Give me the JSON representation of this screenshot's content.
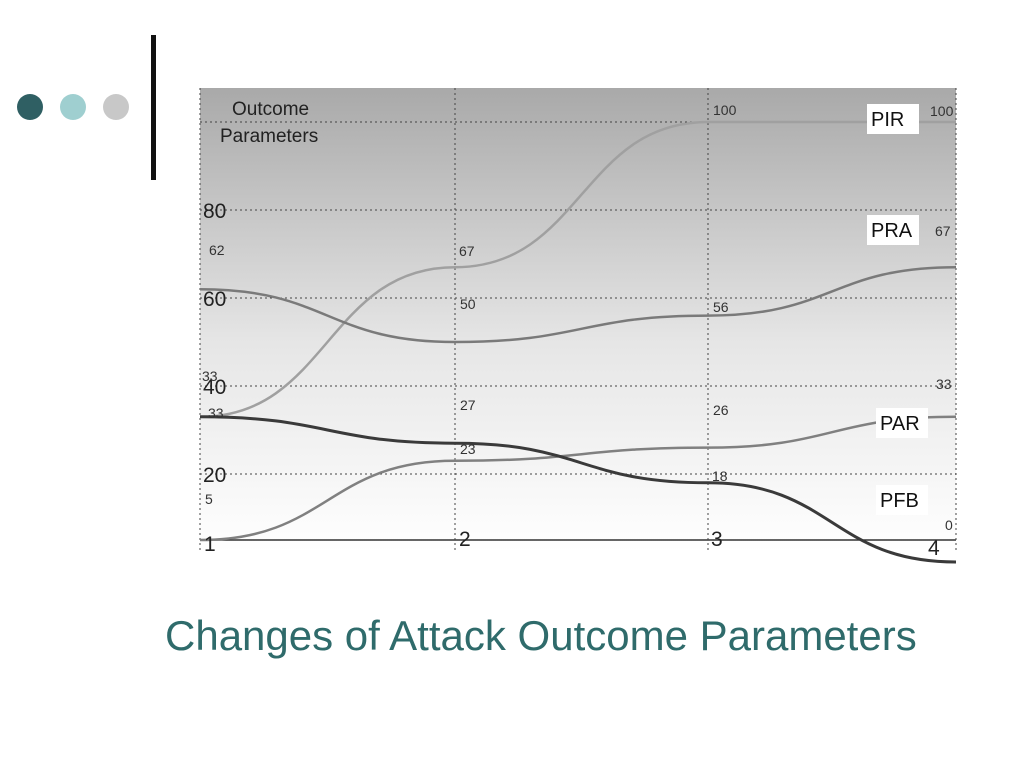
{
  "slide": {
    "title": "Changes of Attack Outcome Parameters",
    "bullet_colors": [
      "#2f5f63",
      "#9fcfd0",
      "#c8c8c8"
    ],
    "title_color": "#2f6b6b"
  },
  "chart_data": {
    "type": "line",
    "title": "Outcome Parameters",
    "x": [
      1,
      2,
      3,
      4
    ],
    "x_ticks": [
      "1",
      "2",
      "3",
      "4"
    ],
    "y_ticks": [
      "20",
      "40",
      "60",
      "80"
    ],
    "ylim": [
      0,
      100
    ],
    "grid": true,
    "series": [
      {
        "name": "PIR",
        "values": [
          33,
          67,
          100,
          100
        ],
        "labels": [
          "33",
          "67",
          "100",
          "100"
        ],
        "color": "#a0a0a0"
      },
      {
        "name": "PRA",
        "values": [
          62,
          50,
          56,
          67
        ],
        "labels": [
          "62",
          "50",
          "56",
          "67"
        ],
        "color": "#7a7a7a"
      },
      {
        "name": "PAR",
        "values": [
          5,
          23,
          26,
          33
        ],
        "labels": [
          "5",
          "23",
          "26",
          "33"
        ],
        "color": "#808080"
      },
      {
        "name": "PFB",
        "values": [
          33,
          27,
          18,
          0
        ],
        "labels": [
          "33",
          "27",
          "18",
          "0"
        ],
        "color": "#3a3a3a"
      }
    ]
  }
}
